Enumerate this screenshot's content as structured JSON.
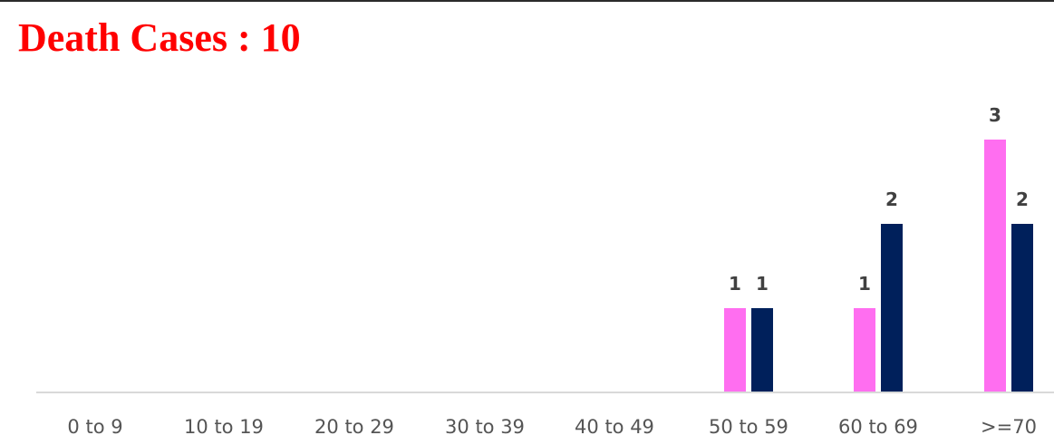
{
  "chart_data": {
    "type": "bar",
    "title": "Death Cases : 10",
    "xlabel": "",
    "ylabel": "",
    "categories": [
      "0 to 9",
      "10 to 19",
      "20 to 29",
      "30 to 39",
      "40 to 49",
      "50 to 59",
      "60 to 69",
      ">=70"
    ],
    "series": [
      {
        "values": [
          0,
          0,
          0,
          0,
          0,
          1,
          1,
          3
        ],
        "labels": [
          "",
          "",
          "",
          "",
          "",
          "1",
          "1",
          "3"
        ],
        "color": "#ff6ef0"
      },
      {
        "values": [
          0,
          0,
          0,
          0,
          0,
          1,
          2,
          2
        ],
        "labels": [
          "",
          "",
          "",
          "",
          "",
          "1",
          "2",
          "2"
        ],
        "color": "#00205b"
      }
    ],
    "ylim": [
      0,
      3
    ],
    "grid": false,
    "legend": "none",
    "title_color": "#ff0000",
    "axis_color": "#d9d9d9"
  }
}
